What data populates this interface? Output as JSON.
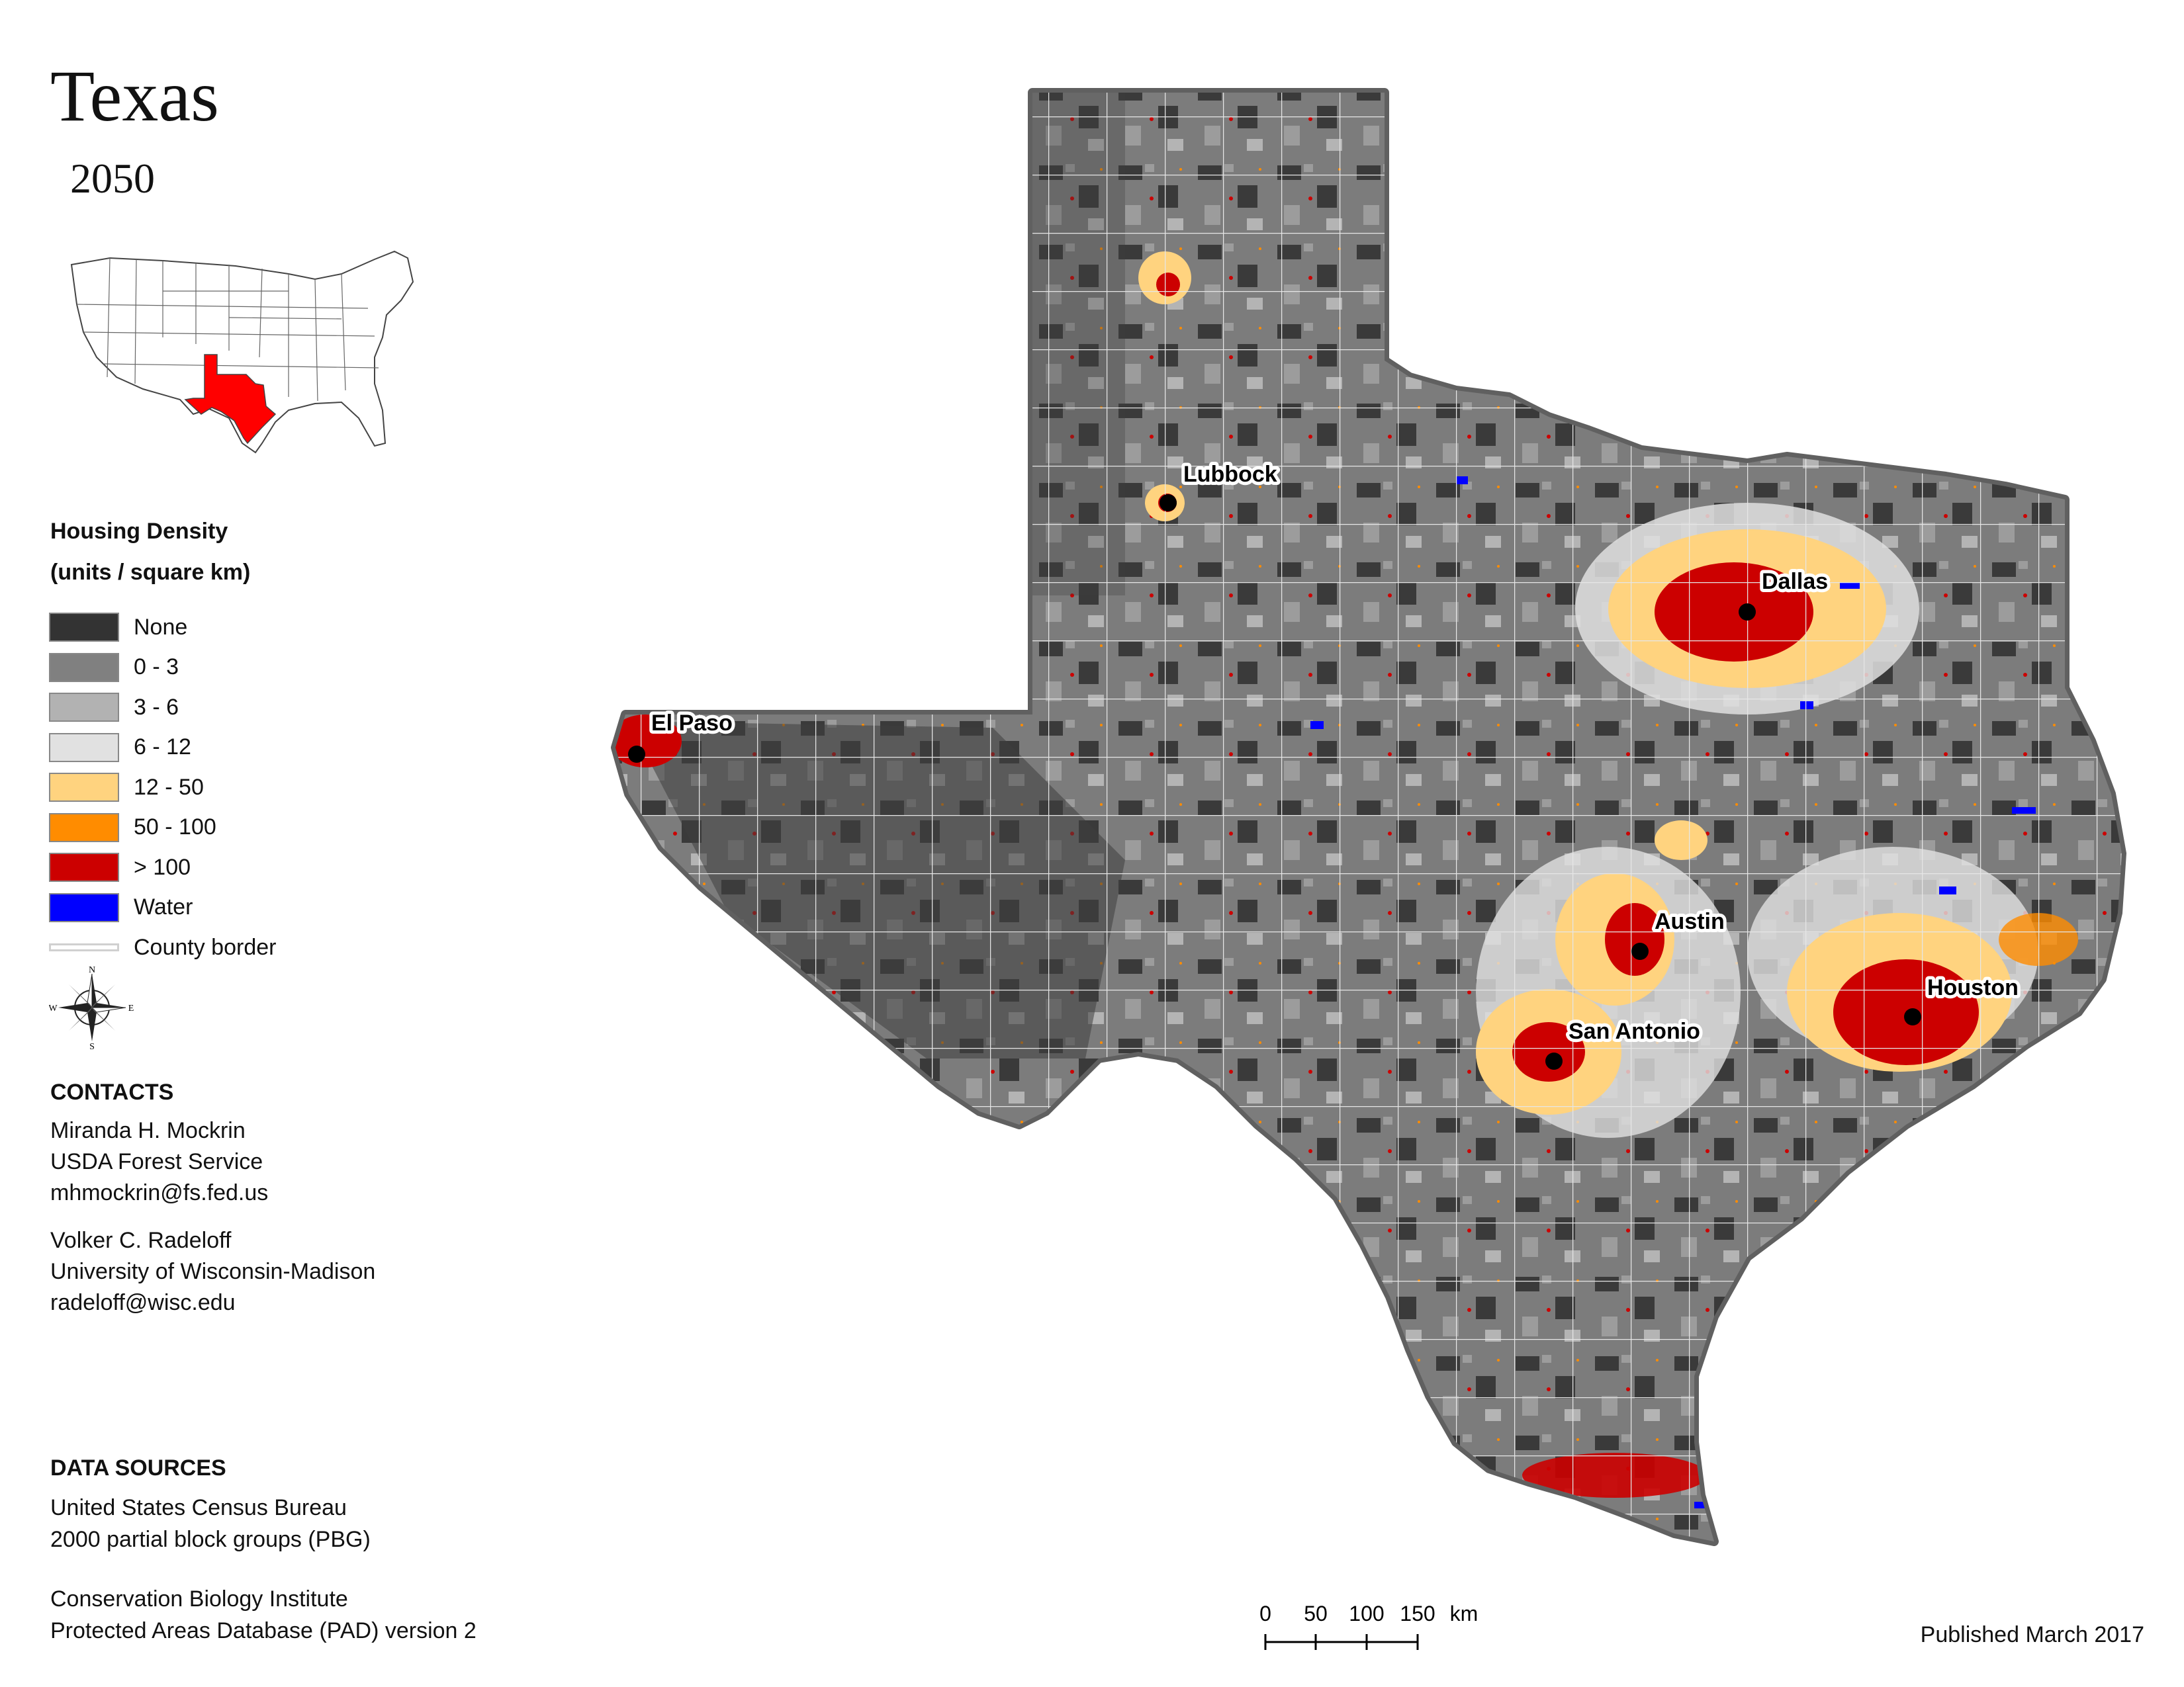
{
  "header": {
    "title": "Texas",
    "year": "2050"
  },
  "legend": {
    "title_line1": "Housing Density",
    "title_line2": "(units / square km)",
    "items": [
      {
        "label": "None",
        "color": "#333333"
      },
      {
        "label": "0 - 3",
        "color": "#808080"
      },
      {
        "label": "3 - 6",
        "color": "#b2b2b2"
      },
      {
        "label": "6 - 12",
        "color": "#e1e1e1"
      },
      {
        "label": "12 - 50",
        "color": "#ffd37f"
      },
      {
        "label": "50 - 100",
        "color": "#ff8c00"
      },
      {
        "label": "> 100",
        "color": "#cc0000"
      },
      {
        "label": "Water",
        "color": "#0000ff"
      },
      {
        "label": "County border",
        "color": "#d0d0d0"
      }
    ]
  },
  "compass": {
    "n": "N",
    "s": "S",
    "e": "E",
    "w": "W"
  },
  "contacts": {
    "heading": "CONTACTS",
    "people": [
      {
        "name": "Miranda H. Mockrin",
        "org": "USDA Forest Service",
        "email": "mhmockrin@fs.fed.us"
      },
      {
        "name": "Volker C. Radeloff",
        "org": "University of Wisconsin-Madison",
        "email": "radeloff@wisc.edu"
      }
    ]
  },
  "data_sources": {
    "heading": "DATA SOURCES",
    "sources": [
      {
        "line1": "United States Census Bureau",
        "line2": "2000 partial block groups (PBG)"
      },
      {
        "line1": "Conservation Biology Institute",
        "line2": "Protected Areas Database (PAD) version 2"
      }
    ]
  },
  "cities": [
    {
      "name": "Lubbock"
    },
    {
      "name": "Dallas"
    },
    {
      "name": "El Paso"
    },
    {
      "name": "Austin"
    },
    {
      "name": "Houston"
    },
    {
      "name": "San Antonio"
    }
  ],
  "scale_bar": {
    "ticks": [
      "0",
      "50",
      "100",
      "150"
    ],
    "unit": "km"
  },
  "footer": {
    "published": "Published March 2017"
  },
  "inset": {
    "highlight_color": "#ff0000"
  }
}
